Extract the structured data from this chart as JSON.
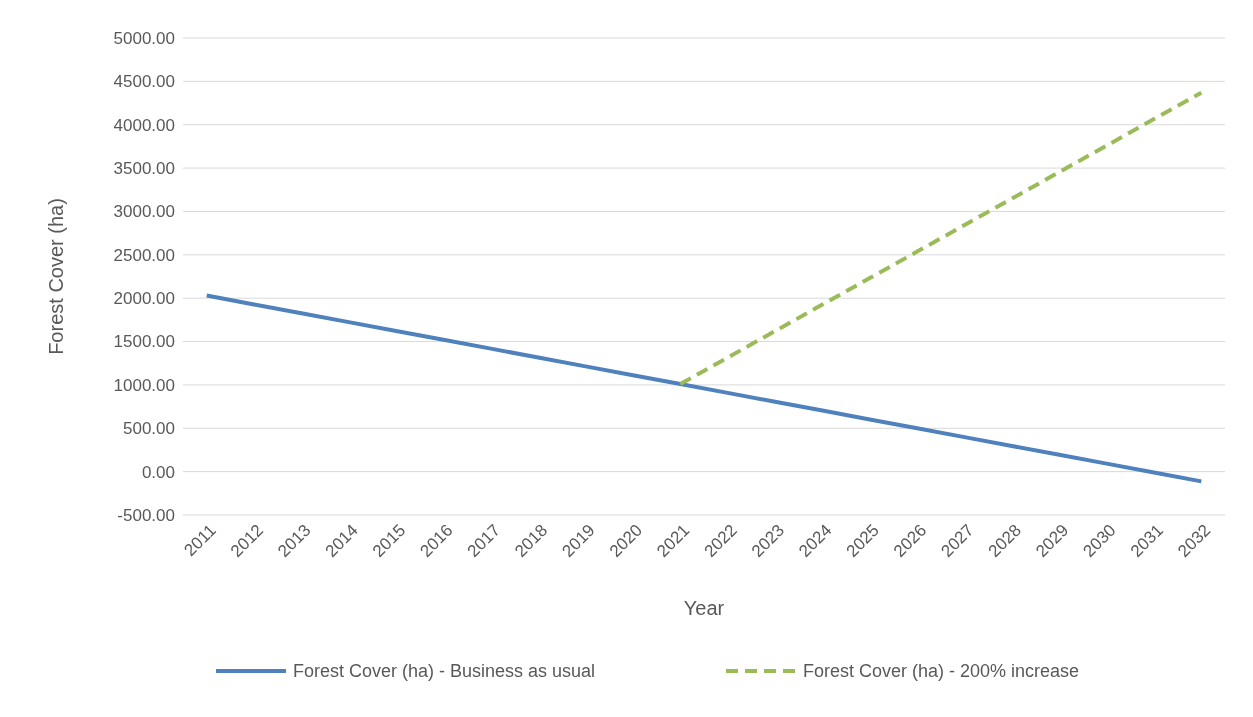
{
  "chart_data": {
    "type": "line",
    "xlabel": "Year",
    "ylabel": "Forest Cover (ha)",
    "categories": [
      "2011",
      "2012",
      "2013",
      "2014",
      "2015",
      "2016",
      "2017",
      "2018",
      "2019",
      "2020",
      "2021",
      "2022",
      "2023",
      "2024",
      "2025",
      "2026",
      "2027",
      "2028",
      "2029",
      "2030",
      "2031",
      "2032"
    ],
    "series": [
      {
        "name": "Forest Cover (ha) - Business as usual",
        "color": "#4f81bd",
        "line_style": "solid",
        "values": [
          2030,
          1928,
          1826,
          1724,
          1622,
          1520,
          1418,
          1316,
          1214,
          1112,
          1010,
          908,
          806,
          704,
          602,
          500,
          398,
          296,
          194,
          92,
          -10,
          -112
        ]
      },
      {
        "name": "Forest Cover (ha) - 200% increase",
        "color": "#9bbb59",
        "line_style": "dashed",
        "values": [
          null,
          null,
          null,
          null,
          null,
          null,
          null,
          null,
          null,
          null,
          1010,
          1315,
          1621,
          1926,
          2232,
          2537,
          2843,
          3148,
          3454,
          3759,
          4065,
          4370
        ]
      }
    ],
    "ylim": [
      -500,
      5000
    ],
    "yticks": [
      {
        "value": -500,
        "label": "-500.00"
      },
      {
        "value": 0,
        "label": "0.00"
      },
      {
        "value": 500,
        "label": "500.00"
      },
      {
        "value": 1000,
        "label": "1000.00"
      },
      {
        "value": 1500,
        "label": "1500.00"
      },
      {
        "value": 2000,
        "label": "2000.00"
      },
      {
        "value": 2500,
        "label": "2500.00"
      },
      {
        "value": 3000,
        "label": "3000.00"
      },
      {
        "value": 3500,
        "label": "3500.00"
      },
      {
        "value": 4000,
        "label": "4000.00"
      },
      {
        "value": 4500,
        "label": "4500.00"
      },
      {
        "value": 5000,
        "label": "5000.00"
      }
    ],
    "grid": "y",
    "legend": "bottom",
    "marker": "none"
  }
}
